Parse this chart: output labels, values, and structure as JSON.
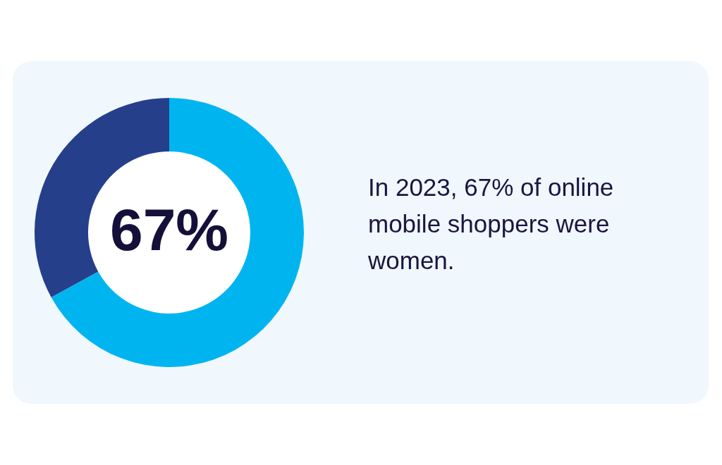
{
  "chart_data": {
    "type": "donut",
    "categories": [
      null,
      null
    ],
    "values": [
      67,
      33
    ],
    "colors": [
      "#00b5ef",
      "#253f8a"
    ],
    "value_labels": [
      "67%",
      null
    ],
    "annotations": [
      "In 2023, 67% of online mobile shoppers were women."
    ]
  }
}
